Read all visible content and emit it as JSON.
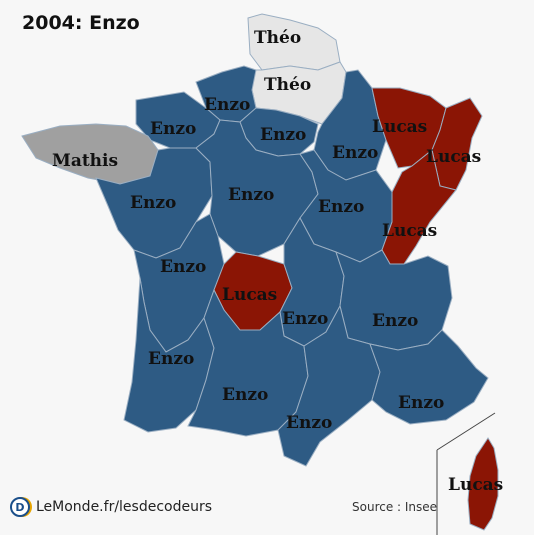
{
  "title": "2004: Enzo",
  "colors": {
    "enzo": "#2e5b84",
    "lucas": "#8b1505",
    "theo": "#e6e6e6",
    "mathis": "#a0a0a0",
    "border": "#9aaec2"
  },
  "regions": [
    {
      "id": "nord-pas-de-calais",
      "name": "Théo",
      "color_key": "theo"
    },
    {
      "id": "picardie",
      "name": "Théo",
      "color_key": "theo"
    },
    {
      "id": "haute-normandie",
      "name": "Enzo",
      "color_key": "enzo"
    },
    {
      "id": "basse-normandie",
      "name": "Enzo",
      "color_key": "enzo"
    },
    {
      "id": "ile-de-france",
      "name": "Enzo",
      "color_key": "enzo"
    },
    {
      "id": "champagne-ardenne",
      "name": "Enzo",
      "color_key": "enzo"
    },
    {
      "id": "lorraine",
      "name": "Lucas",
      "color_key": "lucas"
    },
    {
      "id": "alsace",
      "name": "Lucas",
      "color_key": "lucas"
    },
    {
      "id": "bretagne",
      "name": "Mathis",
      "color_key": "mathis"
    },
    {
      "id": "pays-de-la-loire",
      "name": "Enzo",
      "color_key": "enzo"
    },
    {
      "id": "centre",
      "name": "Enzo",
      "color_key": "enzo"
    },
    {
      "id": "bourgogne",
      "name": "Enzo",
      "color_key": "enzo"
    },
    {
      "id": "franche-comte",
      "name": "Lucas",
      "color_key": "lucas"
    },
    {
      "id": "poitou-charentes",
      "name": "Enzo",
      "color_key": "enzo"
    },
    {
      "id": "limousin",
      "name": "Lucas",
      "color_key": "lucas"
    },
    {
      "id": "auvergne",
      "name": "Enzo",
      "color_key": "enzo"
    },
    {
      "id": "rhone-alpes",
      "name": "Enzo",
      "color_key": "enzo"
    },
    {
      "id": "aquitaine",
      "name": "Enzo",
      "color_key": "enzo"
    },
    {
      "id": "midi-pyrenees",
      "name": "Enzo",
      "color_key": "enzo"
    },
    {
      "id": "languedoc-roussillon",
      "name": "Enzo",
      "color_key": "enzo"
    },
    {
      "id": "provence-alpes-cote-dazur",
      "name": "Enzo",
      "color_key": "enzo"
    },
    {
      "id": "corse",
      "name": "Lucas",
      "color_key": "lucas"
    }
  ],
  "footer": {
    "logo_letter": "D",
    "brand": "LeMonde.fr/lesdecodeurs",
    "source": "Source : Insee"
  }
}
